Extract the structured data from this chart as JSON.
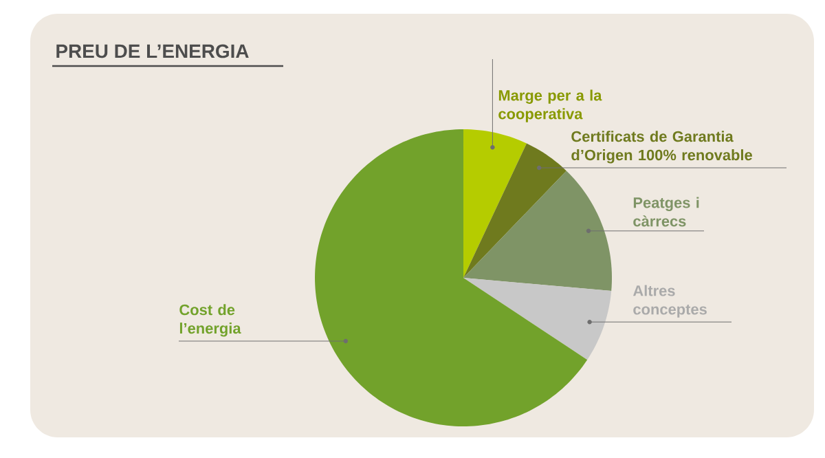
{
  "chart_data": {
    "type": "pie",
    "title": "PREU DE L’ENERGIA",
    "categories": [
      "Marge per a la cooperativa",
      "Certificats de Garantia d’Origen 100% renovable",
      "Peatges i càrrecs",
      "Altres conceptes",
      "Cost de l’energia"
    ],
    "values": [
      7.0,
      5.2,
      14.2,
      7.9,
      65.7
    ],
    "colors": [
      "#b5cc00",
      "#6f7a1e",
      "#7f9466",
      "#c8c8c8",
      "#72a22b"
    ]
  }
}
